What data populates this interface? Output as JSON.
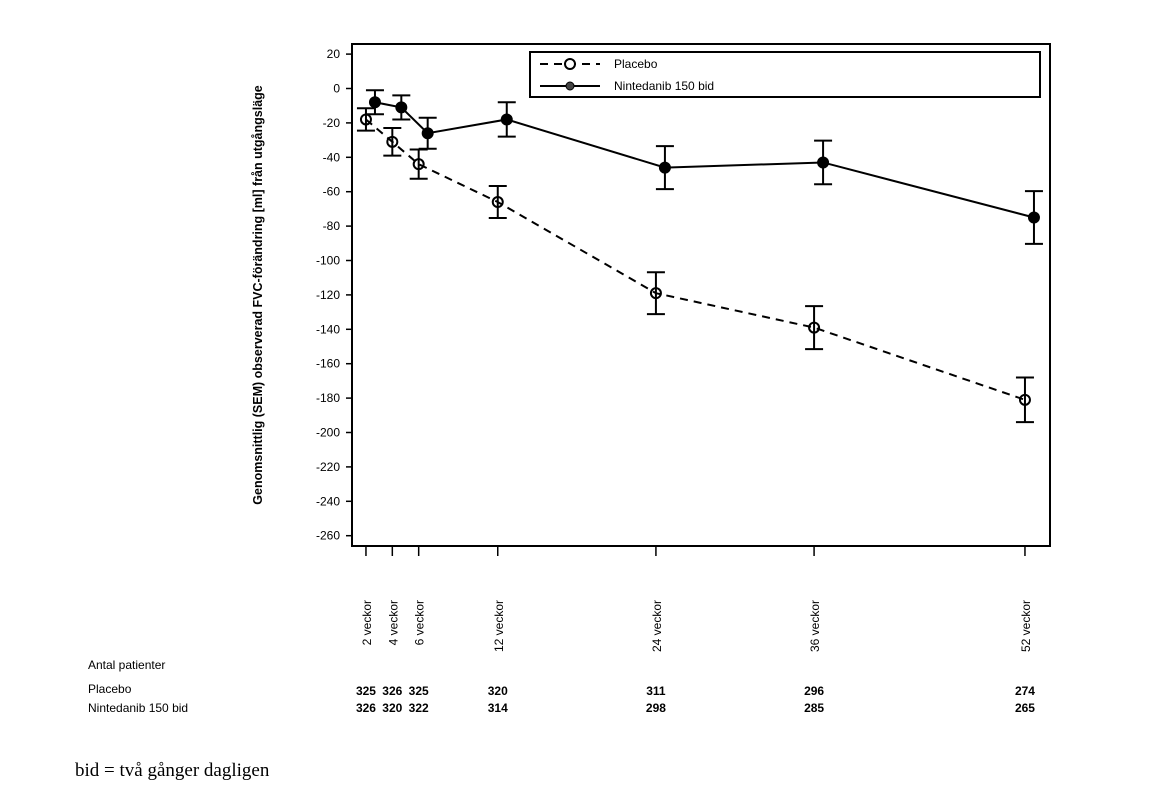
{
  "chart_data": {
    "type": "line",
    "title": "",
    "xlabel": "",
    "ylabel": "Genomsnittlig (SEM) observerad FVC-förändring [ml] från utgångsläge",
    "ylim": [
      -260,
      20
    ],
    "yticks": [
      20,
      0,
      -20,
      -40,
      -60,
      -80,
      -100,
      -120,
      -140,
      -160,
      -180,
      -200,
      -220,
      -240,
      -260
    ],
    "x": [
      2,
      4,
      6,
      12,
      24,
      36,
      52
    ],
    "xtick_labels": [
      "2 veckor",
      "4 veckor",
      "6 veckor",
      "12 veckor",
      "24 veckor",
      "36 veckor",
      "52 veckor"
    ],
    "legend_position": "top-right",
    "series": [
      {
        "name": "Placebo",
        "style": "dashed-open-circle",
        "values": [
          -18,
          -31,
          -44,
          -66,
          -119,
          -139,
          -181
        ],
        "sem": [
          6.5,
          8,
          8.5,
          9.3,
          12.2,
          12.5,
          13
        ]
      },
      {
        "name": "Nintedanib 150 bid",
        "style": "solid-filled-circle",
        "values": [
          -8,
          -11,
          -26,
          -18,
          -46,
          -43,
          -75
        ],
        "sem": [
          7,
          7,
          9,
          10,
          12.5,
          12.7,
          15.3
        ]
      }
    ],
    "patients_table": {
      "header": "Antal patienter",
      "rows": [
        {
          "label": "Placebo",
          "values": [
            "325",
            "326",
            "325",
            "320",
            "311",
            "296",
            "274"
          ]
        },
        {
          "label": "Nintedanib 150 bid",
          "values": [
            "326",
            "320",
            "322",
            "314",
            "298",
            "285",
            "265"
          ]
        }
      ]
    }
  },
  "footnote": "bid = två gånger dagligen"
}
